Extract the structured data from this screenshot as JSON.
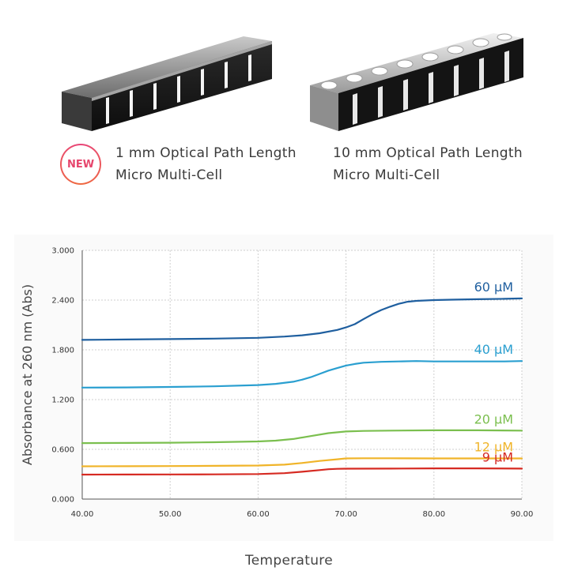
{
  "products": [
    {
      "badge": "NEW",
      "line1": "1 mm Optical Path Length",
      "line2": "Micro Multi-Cell"
    },
    {
      "line1": "10 mm Optical Path Length",
      "line2": "Micro Multi-Cell"
    }
  ],
  "chart_data": {
    "type": "line",
    "xlabel": "Temperature",
    "ylabel": "Absorbance at 260 nm (Abs)",
    "xlim": [
      40,
      90
    ],
    "ylim": [
      0,
      3
    ],
    "xticks": [
      "40.00",
      "50.00",
      "60.00",
      "70.00",
      "80.00",
      "90.00"
    ],
    "yticks": [
      "0.000",
      "0.600",
      "1.200",
      "1.800",
      "2.400",
      "3.000"
    ],
    "grid": true,
    "legend": "inline labels at right end of each series",
    "series": [
      {
        "name": "60 µM",
        "color": "#1f5f9f",
        "x": [
          40,
          45,
          50,
          55,
          60,
          63,
          65,
          67,
          69,
          70,
          71,
          72,
          73,
          74,
          75,
          76,
          77,
          78,
          80,
          82,
          85,
          88,
          90
        ],
        "y": [
          1.92,
          1.925,
          1.93,
          1.935,
          1.945,
          1.96,
          1.975,
          2.0,
          2.04,
          2.07,
          2.11,
          2.17,
          2.23,
          2.28,
          2.32,
          2.355,
          2.38,
          2.39,
          2.4,
          2.405,
          2.41,
          2.415,
          2.42
        ]
      },
      {
        "name": "40 µM",
        "color": "#2a9fd0",
        "x": [
          40,
          45,
          50,
          55,
          60,
          62,
          64,
          65,
          66,
          67,
          68,
          69,
          70,
          71,
          72,
          74,
          76,
          78,
          80,
          85,
          88,
          90
        ],
        "y": [
          1.345,
          1.347,
          1.352,
          1.36,
          1.375,
          1.39,
          1.415,
          1.44,
          1.47,
          1.51,
          1.55,
          1.58,
          1.61,
          1.63,
          1.645,
          1.655,
          1.66,
          1.665,
          1.66,
          1.66,
          1.66,
          1.665
        ]
      },
      {
        "name": "20 µM",
        "color": "#7bbf4f",
        "x": [
          40,
          45,
          50,
          55,
          60,
          62,
          64,
          66,
          68,
          70,
          72,
          75,
          80,
          85,
          90
        ],
        "y": [
          0.675,
          0.677,
          0.68,
          0.686,
          0.695,
          0.705,
          0.725,
          0.76,
          0.795,
          0.815,
          0.822,
          0.826,
          0.83,
          0.83,
          0.826
        ]
      },
      {
        "name": "12 µM",
        "color": "#f0b429",
        "x": [
          40,
          45,
          50,
          55,
          60,
          63,
          65,
          67,
          69,
          70,
          72,
          75,
          80,
          85,
          90
        ],
        "y": [
          0.395,
          0.396,
          0.398,
          0.401,
          0.405,
          0.415,
          0.435,
          0.46,
          0.48,
          0.49,
          0.492,
          0.492,
          0.49,
          0.49,
          0.49
        ]
      },
      {
        "name": "9 µM",
        "color": "#d62a22",
        "x": [
          40,
          45,
          50,
          55,
          60,
          63,
          65,
          67,
          68,
          69,
          70,
          75,
          80,
          85,
          90
        ],
        "y": [
          0.295,
          0.296,
          0.297,
          0.298,
          0.302,
          0.312,
          0.33,
          0.35,
          0.36,
          0.365,
          0.367,
          0.368,
          0.37,
          0.37,
          0.368
        ]
      }
    ]
  }
}
